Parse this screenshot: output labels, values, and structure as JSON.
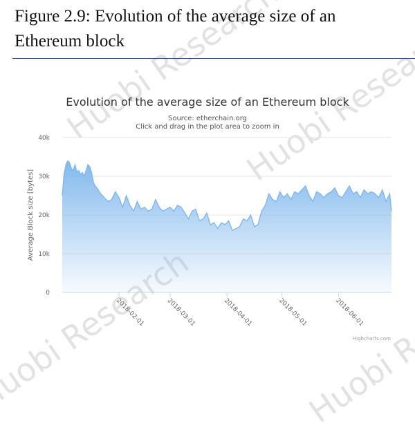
{
  "figure": {
    "caption_line1": "Figure 2.9: Evolution of the average size of an",
    "caption_line2": "Ethereum block"
  },
  "watermark_text": "Huobi Research",
  "chart_data": {
    "type": "area",
    "title": "Evolution of the average size of an Ethereum block",
    "subtitle": "Source: etherchain.org",
    "subtitle2": "Click and drag in the plot area to zoom in",
    "ylabel": "Average Block size [bytes]",
    "xlabel": "",
    "ylim": [
      0,
      40000
    ],
    "xlim": [
      "2018-01-01",
      "2018-06-30"
    ],
    "yticks": [
      0,
      10000,
      20000,
      30000,
      40000
    ],
    "ytick_labels": [
      "0",
      "10k",
      "20k",
      "30k",
      "40k"
    ],
    "xticks": [
      "2018-02-01",
      "2018-03-01",
      "2018-04-01",
      "2018-05-01",
      "2018-06-01"
    ],
    "grid": true,
    "credit": "Highcharts.com",
    "series": [
      {
        "color": "#7cb5ec",
        "x": [
          "2018-01-01",
          "2018-01-02",
          "2018-01-03",
          "2018-01-04",
          "2018-01-05",
          "2018-01-06",
          "2018-01-07",
          "2018-01-08",
          "2018-01-09",
          "2018-01-10",
          "2018-01-11",
          "2018-01-12",
          "2018-01-13",
          "2018-01-14",
          "2018-01-15",
          "2018-01-16",
          "2018-01-17",
          "2018-01-18",
          "2018-01-19",
          "2018-01-20",
          "2018-01-22",
          "2018-01-24",
          "2018-01-26",
          "2018-01-28",
          "2018-01-30",
          "2018-02-01",
          "2018-02-03",
          "2018-02-05",
          "2018-02-07",
          "2018-02-09",
          "2018-02-11",
          "2018-02-13",
          "2018-02-15",
          "2018-02-17",
          "2018-02-19",
          "2018-02-21",
          "2018-02-23",
          "2018-02-25",
          "2018-02-27",
          "2018-03-01",
          "2018-03-03",
          "2018-03-05",
          "2018-03-07",
          "2018-03-09",
          "2018-03-11",
          "2018-03-13",
          "2018-03-15",
          "2018-03-17",
          "2018-03-19",
          "2018-03-21",
          "2018-03-23",
          "2018-03-25",
          "2018-03-27",
          "2018-03-29",
          "2018-03-31",
          "2018-04-02",
          "2018-04-04",
          "2018-04-06",
          "2018-04-08",
          "2018-04-10",
          "2018-04-12",
          "2018-04-14",
          "2018-04-16",
          "2018-04-18",
          "2018-04-20",
          "2018-04-22",
          "2018-04-24",
          "2018-04-26",
          "2018-04-28",
          "2018-04-30",
          "2018-05-02",
          "2018-05-04",
          "2018-05-06",
          "2018-05-08",
          "2018-05-10",
          "2018-05-12",
          "2018-05-14",
          "2018-05-16",
          "2018-05-18",
          "2018-05-20",
          "2018-05-22",
          "2018-05-24",
          "2018-05-26",
          "2018-05-28",
          "2018-05-30",
          "2018-06-01",
          "2018-06-03",
          "2018-06-05",
          "2018-06-07",
          "2018-06-09",
          "2018-06-11",
          "2018-06-13",
          "2018-06-15",
          "2018-06-17",
          "2018-06-19",
          "2018-06-21",
          "2018-06-23",
          "2018-06-25",
          "2018-06-27",
          "2018-06-29",
          "2018-06-30"
        ],
        "values": [
          25000,
          30500,
          33000,
          34000,
          33500,
          32000,
          31500,
          33000,
          31000,
          31500,
          30500,
          31000,
          30000,
          31500,
          33000,
          32500,
          31000,
          28500,
          27500,
          27000,
          25500,
          24500,
          23500,
          24000,
          26000,
          24500,
          22000,
          25000,
          22500,
          21000,
          23500,
          21500,
          22000,
          21000,
          21500,
          24000,
          22000,
          21000,
          21500,
          22000,
          21000,
          22500,
          22000,
          20500,
          19000,
          21000,
          21500,
          18500,
          19000,
          20500,
          17500,
          18000,
          16500,
          18000,
          17500,
          18500,
          16000,
          16500,
          17000,
          19000,
          18500,
          20000,
          17000,
          17500,
          21000,
          22500,
          25500,
          24000,
          23500,
          26000,
          24500,
          25500,
          24000,
          26000,
          25500,
          26500,
          27500,
          25000,
          23500,
          26000,
          25500,
          24500,
          25500,
          26000,
          27000,
          25000,
          24500,
          26000,
          27500,
          25500,
          26000,
          24500,
          26500,
          25500,
          26000,
          25500,
          24500,
          26500,
          23500,
          25500,
          21000
        ]
      }
    ]
  }
}
